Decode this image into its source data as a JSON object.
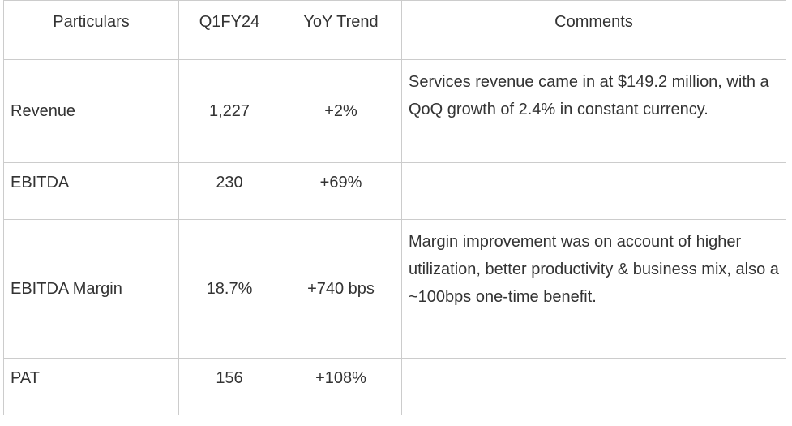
{
  "table": {
    "headers": [
      "Particulars",
      "Q1FY24",
      "YoY Trend",
      "Comments"
    ],
    "rows": [
      {
        "particular": "Revenue",
        "q1fy24": "1,227",
        "yoy": "+2%",
        "comment": "Services revenue came in at $149.2 million, with a QoQ growth of 2.4% in constant currency."
      },
      {
        "particular": "EBITDA",
        "q1fy24": "230",
        "yoy": "+69%",
        "comment": ""
      },
      {
        "particular": "EBITDA Margin",
        "q1fy24": "18.7%",
        "yoy": "+740 bps",
        "comment": "Margin improvement was on account of higher utilization, better productivity & business mix, also a ~100bps one-time benefit."
      },
      {
        "particular": "PAT",
        "q1fy24": "156",
        "yoy": "+108%",
        "comment": ""
      }
    ]
  }
}
